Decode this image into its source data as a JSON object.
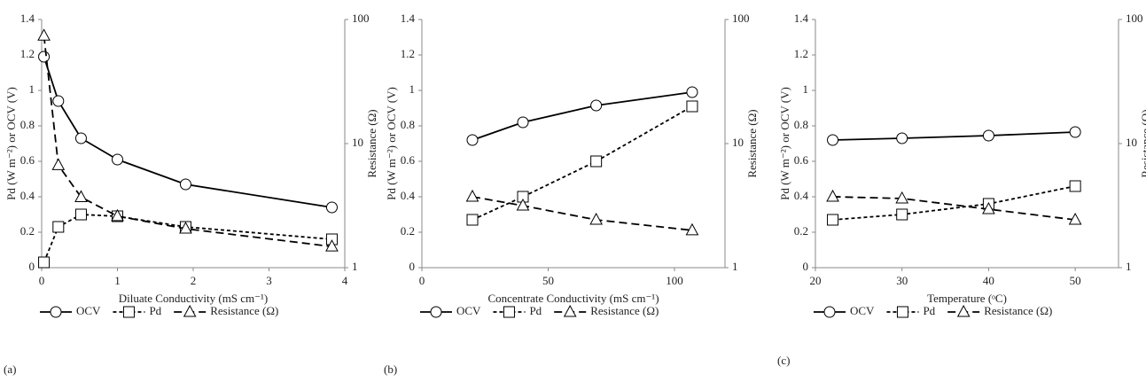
{
  "chart_data": [
    {
      "type": "line",
      "panel_label": "(a)",
      "x_label": "Diluate Conductivity (mS cm⁻¹)",
      "y_label": "Pd (W m⁻²) or OCV (V)",
      "y2_label": "Resistance (Ω)",
      "x": [
        0.03,
        0.22,
        0.52,
        1.0,
        1.9,
        3.83
      ],
      "xlim": [
        0,
        4
      ],
      "xticks": [
        0,
        1,
        2,
        3,
        4
      ],
      "ylim": [
        0,
        1.4
      ],
      "yticks": [
        0,
        0.2,
        0.4,
        0.6,
        0.8,
        1,
        1.2,
        1.4
      ],
      "y2lim": [
        1,
        100
      ],
      "y2ticks": [
        1,
        10,
        100
      ],
      "y2_log": true,
      "series": [
        {
          "name": "OCV",
          "color": "#000000",
          "marker": "circle",
          "linestyle": "solid",
          "values": [
            1.19,
            0.94,
            0.73,
            0.61,
            0.47,
            0.34
          ]
        },
        {
          "name": "Pd",
          "color": "#000000",
          "marker": "square",
          "linestyle": "dotted",
          "values": [
            0.03,
            0.23,
            0.3,
            0.29,
            0.23,
            0.16
          ]
        },
        {
          "name": "Resistance (Ω)",
          "color": "#000000",
          "marker": "triangle",
          "linestyle": "dashed",
          "axis": "y2",
          "values": [
            74,
            6.7,
            3.7,
            2.6,
            2.06,
            1.48
          ]
        }
      ]
    },
    {
      "type": "line",
      "panel_label": "(b)",
      "x_label": "Concentrate Conductivity (mS cm⁻¹)",
      "y_label": "Pd (W m⁻²) or OCV (V)",
      "y2_label": "Resistance (Ω)",
      "x": [
        20,
        40,
        69,
        107
      ],
      "xlim": [
        0,
        120
      ],
      "xticks": [
        0,
        50,
        100
      ],
      "ylim": [
        0,
        1.4
      ],
      "yticks": [
        0,
        0.2,
        0.4,
        0.6,
        0.8,
        1,
        1.2,
        1.4
      ],
      "y2lim": [
        1,
        100
      ],
      "y2ticks": [
        1,
        10,
        100
      ],
      "y2_log": true,
      "series": [
        {
          "name": "OCV",
          "color": "#000000",
          "marker": "circle",
          "linestyle": "solid",
          "values": [
            0.72,
            0.82,
            0.915,
            0.99
          ]
        },
        {
          "name": "Pd",
          "color": "#000000",
          "marker": "square",
          "linestyle": "dotted",
          "values": [
            0.27,
            0.4,
            0.6,
            0.91
          ]
        },
        {
          "name": "Resistance (Ω)",
          "color": "#000000",
          "marker": "triangle",
          "linestyle": "dashed",
          "axis": "y2",
          "values": [
            3.73,
            3.16,
            2.43,
            2.0
          ]
        }
      ]
    },
    {
      "type": "line",
      "panel_label": "(c)",
      "x_label": "Temperature (ᵒC)",
      "y_label": "Pd (W m⁻²) or OCV (V)",
      "y2_label": "Resistance (Ω)",
      "x": [
        22,
        30,
        40,
        50
      ],
      "xlim": [
        20,
        55
      ],
      "xticks": [
        20,
        30,
        40,
        50
      ],
      "ylim": [
        0,
        1.4
      ],
      "yticks": [
        0,
        0.2,
        0.4,
        0.6,
        0.8,
        1,
        1.2,
        1.4
      ],
      "y2lim": [
        1,
        100
      ],
      "y2ticks": [
        1,
        10,
        100
      ],
      "y2_log": true,
      "series": [
        {
          "name": "OCV",
          "color": "#000000",
          "marker": "circle",
          "linestyle": "solid",
          "values": [
            0.72,
            0.73,
            0.745,
            0.765
          ]
        },
        {
          "name": "Pd",
          "color": "#000000",
          "marker": "square",
          "linestyle": "dotted",
          "values": [
            0.27,
            0.3,
            0.36,
            0.46
          ]
        },
        {
          "name": "Resistance (Ω)",
          "color": "#000000",
          "marker": "triangle",
          "linestyle": "dashed",
          "axis": "y2",
          "values": [
            3.73,
            3.61,
            2.96,
            2.43
          ]
        }
      ]
    }
  ]
}
